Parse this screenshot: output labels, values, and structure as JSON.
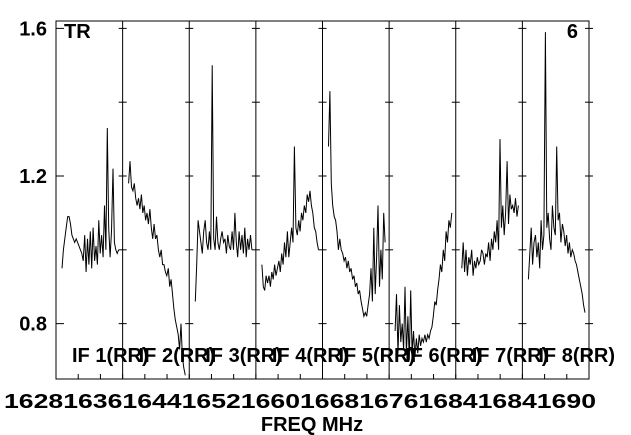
{
  "chart_data": {
    "type": "line",
    "corner_left": "TR",
    "corner_right": "6",
    "xlabel": "FREQ MHz",
    "ylim": [
      0.65,
      1.62
    ],
    "y_ticks": [
      "1.6",
      "1.2",
      "0.8"
    ],
    "y_tick_values": [
      1.6,
      1.2,
      0.8
    ],
    "x_tick_labels": [
      "1628",
      "1636",
      "1644",
      "1652",
      "1660",
      "1668",
      "1676",
      "1684",
      "1690"
    ],
    "x_tick_label_text": "1628163616441652166016681676168416841690",
    "panels": [
      {
        "label": "IF 1(RR)",
        "xlim": [
          1628,
          1636
        ],
        "values": [
          0.95,
          1.0,
          1.03,
          1.06,
          1.09,
          1.09,
          1.07,
          1.04,
          1.03,
          1.02,
          1.03,
          1.02,
          1.01,
          1.0,
          0.99,
          0.97,
          1.04,
          0.94,
          1.03,
          0.96,
          1.05,
          0.95,
          1.06,
          0.97,
          1.01,
          0.96,
          1.08,
          0.99,
          1.04,
          0.98,
          1.12,
          1.0,
          1.33,
          1.06,
          0.98,
          1.05,
          1.22,
          1.02,
          1.0,
          0.99,
          1.0
        ]
      },
      {
        "label": "IF 2(RR)",
        "xlim": [
          1636,
          1644
        ],
        "values": [
          1.18,
          1.24,
          1.17,
          1.16,
          1.18,
          1.14,
          1.12,
          1.14,
          1.11,
          1.15,
          1.1,
          1.12,
          1.08,
          1.1,
          1.07,
          1.11,
          1.06,
          1.03,
          1.07,
          1.03,
          1.04,
          1.0,
          0.98,
          1.0,
          0.96,
          0.96,
          0.94,
          0.93,
          0.95,
          0.9,
          0.92,
          0.88,
          0.84,
          0.81,
          0.79,
          0.77,
          0.73,
          0.8,
          0.71,
          0.68,
          0.66
        ]
      },
      {
        "label": "IF 3(RR)",
        "xlim": [
          1644,
          1652
        ],
        "values": [
          0.86,
          0.96,
          1.08,
          1.05,
          1.02,
          0.99,
          1.05,
          1.08,
          1.02,
          1.0,
          1.05,
          1.0,
          1.5,
          1.03,
          1.0,
          1.09,
          1.02,
          1.0,
          1.03,
          1.05,
          1.02,
          1.03,
          0.99,
          1.04,
          1.01,
          1.0,
          1.05,
          1.0,
          1.1,
          1.02,
          0.98,
          1.05,
          1.0,
          1.04,
          0.99,
          1.06,
          0.98,
          1.03,
          1.0,
          1.04,
          1.0
        ]
      },
      {
        "label": "IF 4(RR)",
        "xlim": [
          1652,
          1660
        ],
        "values": [
          0.96,
          0.9,
          0.89,
          0.93,
          0.91,
          0.93,
          0.9,
          0.94,
          0.92,
          0.96,
          0.93,
          0.95,
          0.97,
          0.94,
          0.99,
          0.96,
          1.02,
          0.98,
          1.05,
          0.98,
          1.02,
          1.06,
          1.02,
          1.28,
          1.06,
          1.04,
          1.08,
          1.05,
          1.1,
          1.08,
          1.12,
          1.1,
          1.15,
          1.13,
          1.16,
          1.12,
          1.1,
          1.06,
          1.05,
          1.02,
          1.0
        ]
      },
      {
        "label": "IF 5(RR)",
        "xlim": [
          1660,
          1668
        ],
        "values": [
          1.28,
          1.43,
          1.18,
          1.12,
          1.09,
          1.08,
          1.05,
          1.0,
          1.03,
          1.0,
          0.99,
          0.97,
          0.98,
          0.95,
          0.97,
          0.94,
          0.95,
          0.92,
          0.93,
          0.9,
          0.91,
          0.88,
          0.89,
          0.86,
          0.84,
          0.82,
          0.83,
          0.82,
          0.85,
          0.88,
          0.95,
          0.86,
          1.06,
          0.88,
          0.98,
          1.12,
          0.9,
          1.0,
          0.92,
          1.1,
          1.02
        ]
      },
      {
        "label": "IF 6(RR)",
        "xlim": [
          1668,
          1676
        ],
        "values": [
          0.78,
          0.88,
          0.72,
          0.85,
          0.75,
          0.8,
          0.73,
          0.9,
          0.72,
          0.82,
          0.7,
          0.89,
          0.72,
          0.78,
          0.71,
          0.76,
          0.72,
          0.77,
          0.74,
          0.76,
          0.75,
          0.77,
          0.75,
          0.77,
          0.76,
          0.78,
          0.79,
          0.82,
          0.86,
          0.85,
          0.89,
          0.92,
          0.96,
          0.94,
          1.0,
          0.97,
          1.05,
          1.02,
          1.08,
          1.06,
          1.1
        ]
      },
      {
        "label": "IF 7(RR)",
        "xlim": [
          1676,
          1684
        ],
        "values": [
          0.95,
          1.02,
          0.94,
          1.0,
          0.93,
          0.98,
          0.96,
          1.0,
          0.93,
          0.97,
          0.95,
          0.98,
          0.96,
          0.97,
          1.0,
          0.99,
          0.96,
          0.99,
          0.98,
          1.02,
          0.97,
          1.03,
          1.0,
          1.05,
          1.02,
          1.08,
          1.0,
          1.3,
          1.06,
          1.12,
          1.04,
          1.1,
          1.24,
          1.07,
          1.15,
          1.11,
          1.12,
          1.1,
          1.14,
          1.09,
          1.12
        ]
      },
      {
        "label": "IF 8(RR)",
        "xlim": [
          1684,
          1690
        ],
        "values": [
          0.92,
          0.99,
          1.06,
          0.96,
          1.02,
          1.04,
          0.98,
          1.02,
          0.95,
          1.08,
          1.0,
          1.04,
          1.59,
          1.06,
          1.1,
          1.03,
          1.0,
          1.12,
          1.06,
          1.04,
          1.28,
          1.08,
          1.1,
          1.02,
          1.07,
          1.05,
          1.01,
          1.04,
          0.99,
          1.02,
          0.98,
          1.0,
          0.99,
          0.97,
          0.96,
          0.94,
          0.92,
          0.9,
          0.88,
          0.85,
          0.83
        ]
      }
    ]
  }
}
